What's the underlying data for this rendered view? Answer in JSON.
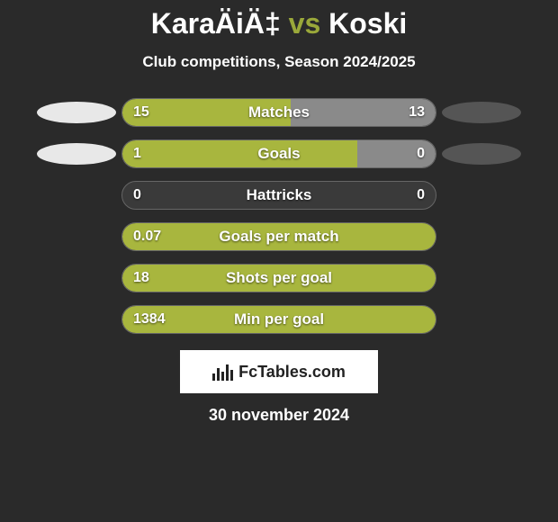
{
  "title": {
    "player1": "KaraÄiÄ‡",
    "vs": "vs",
    "player2": "Koski"
  },
  "subtitle": "Club competitions, Season 2024/2025",
  "shirt_colors": {
    "left": "#e8e8e8",
    "right": "#555555"
  },
  "bar_colors": {
    "left": "#a8b63e",
    "right": "#8a8a8a",
    "track": "#3a3a3a",
    "border": "#666666"
  },
  "rows": [
    {
      "label": "Matches",
      "left_val": "15",
      "right_val": "13",
      "left_pct": 53.6,
      "right_pct": 46.4,
      "show_shirts": true
    },
    {
      "label": "Goals",
      "left_val": "1",
      "right_val": "0",
      "left_pct": 75,
      "right_pct": 25,
      "show_shirts": true
    },
    {
      "label": "Hattricks",
      "left_val": "0",
      "right_val": "0",
      "left_pct": 0,
      "right_pct": 0,
      "show_shirts": false
    },
    {
      "label": "Goals per match",
      "left_val": "0.07",
      "right_val": "",
      "left_pct": 100,
      "right_pct": 0,
      "show_shirts": false
    },
    {
      "label": "Shots per goal",
      "left_val": "18",
      "right_val": "",
      "left_pct": 100,
      "right_pct": 0,
      "show_shirts": false
    },
    {
      "label": "Min per goal",
      "left_val": "1384",
      "right_val": "",
      "left_pct": 100,
      "right_pct": 0,
      "show_shirts": false
    }
  ],
  "logo": {
    "text": "FcTables.com"
  },
  "date": "30 november 2024",
  "background_color": "#2a2a2a",
  "text_color": "#ffffff",
  "fonts": {
    "title_size": 32,
    "subtitle_size": 17,
    "label_size": 17,
    "value_size": 16,
    "date_size": 18
  }
}
